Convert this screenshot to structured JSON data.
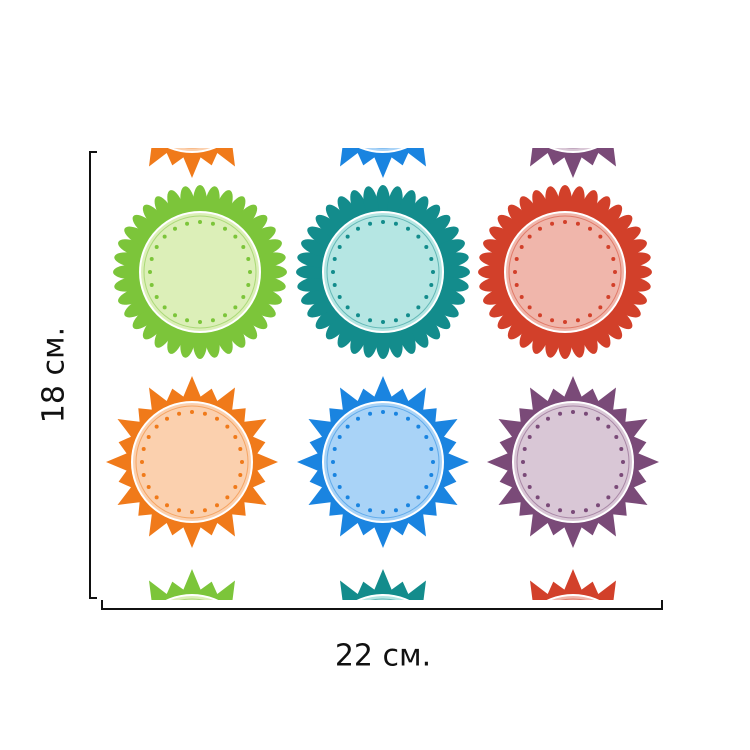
{
  "dimensions": {
    "height": "18 см.",
    "width": "22 см."
  }
}
